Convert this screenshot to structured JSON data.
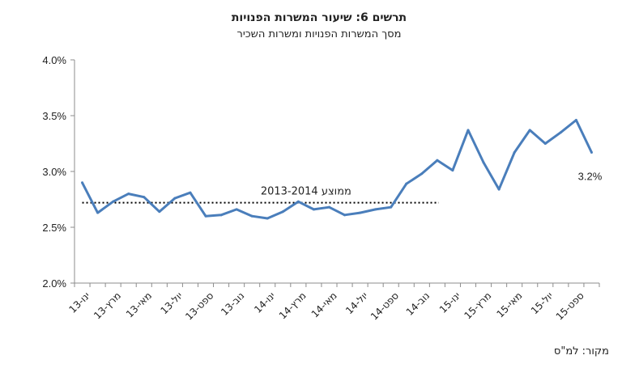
{
  "chart_data": {
    "type": "line",
    "title": "תרשים 6: שיעור המשרות הפנויות",
    "subtitle": "מסך המשרות הפנויות ומשרות השכיר",
    "source": "מקור: למ\"ס",
    "ylim": [
      2.0,
      4.0
    ],
    "yticks": [
      "4.0%",
      "3.5%",
      "3.0%",
      "2.5%",
      "2.0%"
    ],
    "ytick_values": [
      4.0,
      3.5,
      3.0,
      2.5,
      2.0
    ],
    "xtick_labels": [
      "ינו-13",
      "מרץ-13",
      "מאי-13",
      "יול-13",
      "ספט-13",
      "נוב-13",
      "ינו-14",
      "מרץ-14",
      "מאי-14",
      "יול-14",
      "ספט-14",
      "נוב-14",
      "ינו-15",
      "מרץ-15",
      "מאי-15",
      "יול-15",
      "ספט-15"
    ],
    "series": [
      {
        "color": "#4a7ebb",
        "values": [
          2.9,
          2.63,
          2.73,
          2.8,
          2.77,
          2.64,
          2.76,
          2.81,
          2.6,
          2.61,
          2.66,
          2.6,
          2.58,
          2.64,
          2.73,
          2.66,
          2.68,
          2.61,
          2.63,
          2.66,
          2.68,
          2.89,
          2.98,
          3.1,
          3.01,
          3.37,
          3.08,
          2.84,
          3.17,
          3.37,
          3.25,
          3.35,
          3.46,
          3.17
        ]
      }
    ],
    "average_line": {
      "label": "ממוצע 2013-2014",
      "value": 2.72
    },
    "last_value_label": "3.2%",
    "grid": false
  }
}
